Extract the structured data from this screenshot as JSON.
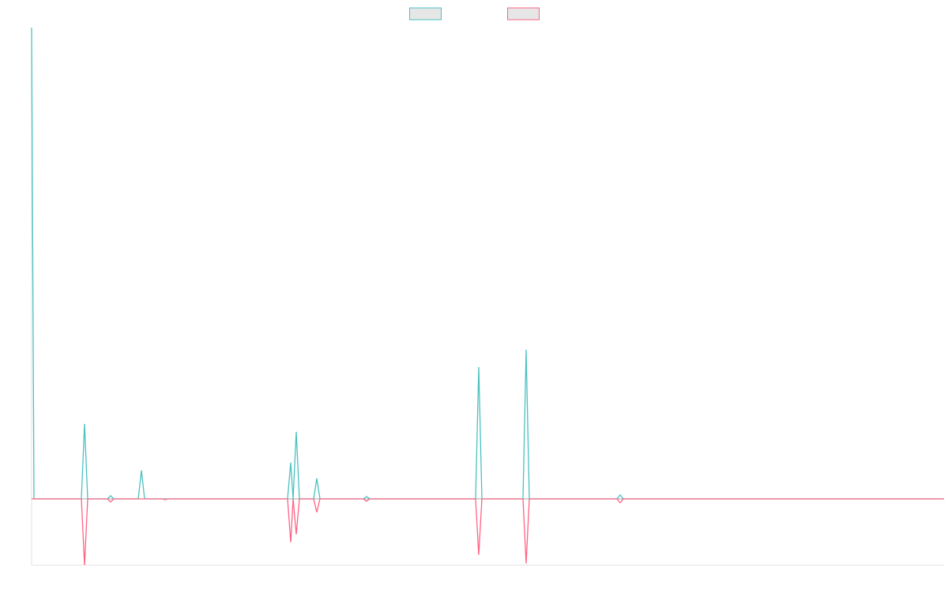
{
  "chart_data": {
    "type": "line",
    "x": [
      0,
      3,
      63,
      67,
      71,
      96,
      100,
      104,
      135,
      139,
      143,
      165,
      169,
      173,
      324,
      328,
      331,
      335,
      339,
      357,
      361,
      365,
      420,
      424,
      428,
      562,
      566,
      570,
      622,
      626,
      630,
      741,
      745,
      749,
      1155
    ],
    "series": [
      {
        "color": "#4bc0c0",
        "values": [
          597,
          0,
          0,
          95,
          0,
          0,
          4,
          0,
          0,
          36,
          0,
          0,
          0,
          0,
          0,
          46,
          0,
          85,
          0,
          0,
          26,
          0,
          0,
          3,
          0,
          0,
          167,
          0,
          0,
          189,
          0,
          0,
          5,
          0,
          0
        ]
      },
      {
        "color": "#ff6384",
        "values": [
          0,
          0,
          0,
          -84,
          0,
          0,
          -4,
          0,
          0,
          0,
          0,
          0,
          -1,
          0,
          0,
          -55,
          0,
          -45,
          0,
          0,
          -17,
          0,
          0,
          -3,
          0,
          0,
          -71,
          0,
          0,
          -82,
          0,
          0,
          -5,
          0,
          0
        ]
      }
    ],
    "xlim": [
      0,
      1155
    ],
    "ylim": [
      -84,
      597
    ],
    "legend": "top"
  }
}
